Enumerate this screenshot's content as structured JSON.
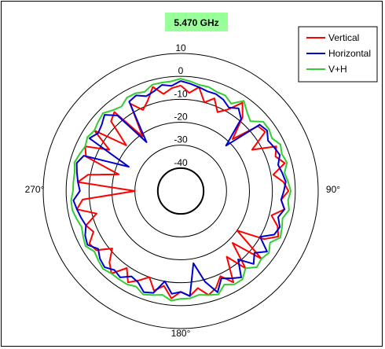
{
  "chart_data": {
    "type": "polar-line",
    "title": "5.470 GHz",
    "title_background": "#99ff99",
    "radial_ticks": [
      "10",
      "0",
      "-10",
      "-20",
      "-30",
      "-40"
    ],
    "radial_range": [
      -50,
      10
    ],
    "angle_labels": {
      "top": "",
      "right": "90°",
      "bottom": "180°",
      "left": "270°"
    },
    "legend_position": "top-right",
    "series": [
      {
        "name": "Vertical",
        "color": "#ff0000",
        "angles": [
          0,
          5,
          10,
          15,
          20,
          25,
          30,
          35,
          40,
          45,
          50,
          55,
          60,
          65,
          70,
          75,
          80,
          85,
          90,
          95,
          100,
          105,
          110,
          115,
          120,
          125,
          130,
          135,
          140,
          145,
          150,
          155,
          160,
          165,
          170,
          175,
          180,
          185,
          190,
          195,
          200,
          205,
          210,
          215,
          220,
          225,
          230,
          235,
          240,
          245,
          250,
          255,
          260,
          265,
          270,
          275,
          280,
          285,
          290,
          295,
          300,
          305,
          310,
          315,
          320,
          325,
          330,
          335,
          340,
          345,
          350,
          355
        ],
        "values": [
          -4,
          -7,
          -4,
          -10,
          -7,
          -12,
          -9,
          -3,
          -8,
          -18,
          -6,
          -5,
          -14,
          -4,
          -6,
          -3,
          -9,
          -5,
          -3,
          -6,
          -4,
          -9,
          -5,
          -3,
          -8,
          -20,
          -4,
          -18,
          -6,
          -15,
          -4,
          -9,
          -5,
          -3,
          -7,
          -4,
          -6,
          -3,
          -8,
          -5,
          -10,
          -7,
          -4,
          -9,
          -3,
          -6,
          -11,
          -5,
          -4,
          -8,
          -6,
          -12,
          -4,
          -7,
          -30,
          -5,
          -9,
          -22,
          -6,
          -4,
          -14,
          -4,
          -19,
          -7,
          -5,
          -21,
          -6,
          -11,
          -8,
          -3,
          -7,
          -5
        ]
      },
      {
        "name": "Horizontal",
        "color": "#0000cc",
        "angles": [
          0,
          5,
          10,
          15,
          20,
          25,
          30,
          35,
          40,
          45,
          50,
          55,
          60,
          65,
          70,
          75,
          80,
          85,
          90,
          95,
          100,
          105,
          110,
          115,
          120,
          125,
          130,
          135,
          140,
          145,
          150,
          155,
          160,
          165,
          170,
          175,
          180,
          185,
          190,
          195,
          200,
          205,
          210,
          215,
          220,
          225,
          230,
          235,
          240,
          245,
          250,
          255,
          260,
          265,
          270,
          275,
          280,
          285,
          290,
          295,
          300,
          305,
          310,
          315,
          320,
          325,
          330,
          335,
          340,
          345,
          350,
          355
        ],
        "values": [
          -2,
          -3,
          -4,
          -5,
          -5,
          -6,
          -8,
          -6,
          -9,
          -22,
          -5,
          -4,
          -6,
          -5,
          -4,
          -6,
          -5,
          -4,
          -5,
          -6,
          -4,
          -6,
          -4,
          -5,
          -10,
          -4,
          -8,
          -5,
          -11,
          -4,
          -6,
          -8,
          -3,
          -9,
          -18,
          -4,
          -6,
          -5,
          -10,
          -4,
          -3,
          -6,
          -7,
          -4,
          -5,
          -3,
          -4,
          -6,
          -3,
          -4,
          -6,
          -5,
          -4,
          -3,
          -6,
          -5,
          -4,
          -3,
          -5,
          -25,
          -4,
          -6,
          -5,
          -3,
          -7,
          -24,
          -5,
          -4,
          -6,
          -5,
          -3,
          -4
        ]
      },
      {
        "name": "V+H",
        "color": "#33cc33",
        "angles": [
          0,
          5,
          10,
          15,
          20,
          25,
          30,
          35,
          40,
          45,
          50,
          55,
          60,
          65,
          70,
          75,
          80,
          85,
          90,
          95,
          100,
          105,
          110,
          115,
          120,
          125,
          130,
          135,
          140,
          145,
          150,
          155,
          160,
          165,
          170,
          175,
          180,
          185,
          190,
          195,
          200,
          205,
          210,
          215,
          220,
          225,
          230,
          235,
          240,
          245,
          250,
          255,
          260,
          265,
          270,
          275,
          280,
          285,
          290,
          295,
          300,
          305,
          310,
          315,
          320,
          325,
          330,
          335,
          340,
          345,
          350,
          355
        ],
        "values": [
          -1,
          -2,
          -3,
          -3,
          -4,
          -4,
          -6,
          -2,
          -5,
          -7,
          -3,
          -3,
          -4,
          -2,
          -3,
          -2,
          -4,
          -3,
          -2,
          -3,
          -2,
          -4,
          -3,
          -2,
          -5,
          -3,
          -4,
          -3,
          -6,
          -3,
          -3,
          -5,
          -2,
          -3,
          -4,
          -3,
          -3,
          -2,
          -4,
          -3,
          -2,
          -4,
          -3,
          -3,
          -3,
          -2,
          -3,
          -4,
          -2,
          -3,
          -4,
          -3,
          -2,
          -2,
          -3,
          -3,
          -3,
          -2,
          -3,
          -4,
          -3,
          -4,
          -3,
          -2,
          -4,
          -5,
          -3,
          -3,
          -4,
          -2,
          -2,
          -2
        ]
      }
    ]
  }
}
